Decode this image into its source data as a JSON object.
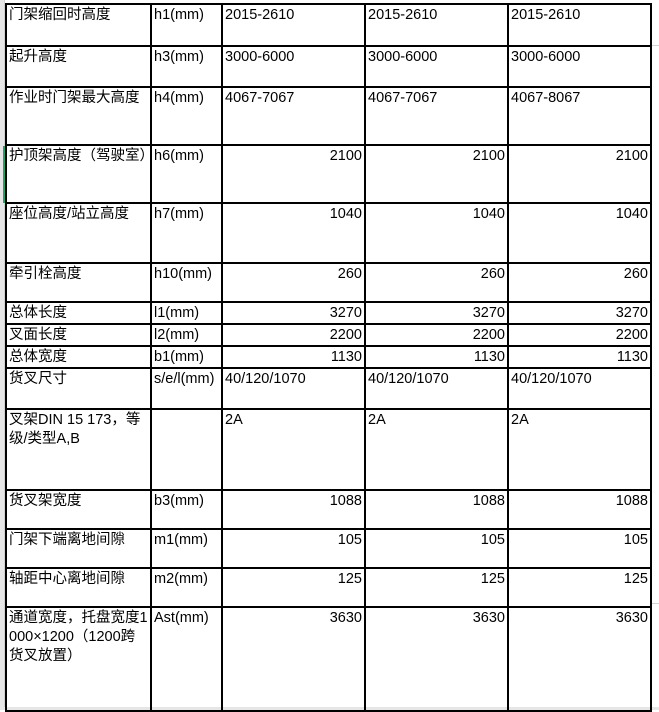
{
  "sheet": {
    "rows": [
      {
        "label": "门架缩回时高度",
        "unit": "h1(mm)",
        "values": [
          "2015-2610",
          "2015-2610",
          "2015-2610"
        ]
      },
      {
        "label": "起升高度",
        "unit": "h3(mm)",
        "values": [
          "3000-6000",
          "3000-6000",
          "3000-6000"
        ]
      },
      {
        "label": "作业时门架最大高度",
        "unit": "h4(mm)",
        "values": [
          "4067-7067",
          "4067-7067",
          "4067-8067"
        ]
      },
      {
        "label": "护顶架高度（驾驶室）",
        "unit": "h6(mm)",
        "values": [
          "2100",
          "2100",
          "2100"
        ]
      },
      {
        "label": "座位高度/站立高度",
        "unit": "h7(mm)",
        "values": [
          "1040",
          "1040",
          "1040"
        ]
      },
      {
        "label": "牵引栓高度",
        "unit": "h10(mm)",
        "values": [
          "260",
          "260",
          "260"
        ]
      },
      {
        "label": "总体长度",
        "unit": "l1(mm)",
        "values": [
          "3270",
          "3270",
          "3270"
        ]
      },
      {
        "label": "叉面长度",
        "unit": "l2(mm)",
        "values": [
          "2200",
          "2200",
          "2200"
        ]
      },
      {
        "label": "总体宽度",
        "unit": "b1(mm)",
        "values": [
          "1130",
          "1130",
          "1130"
        ]
      },
      {
        "label": "货叉尺寸",
        "unit": "s/e/l(mm)",
        "values": [
          "40/120/1070",
          "40/120/1070",
          "40/120/1070"
        ]
      },
      {
        "label": "叉架DIN 15 173，等级/类型A,B",
        "unit": "",
        "values": [
          "2A",
          "2A",
          "2A"
        ]
      },
      {
        "label": "货叉架宽度",
        "unit": "b3(mm)",
        "values": [
          "1088",
          "1088",
          "1088"
        ]
      },
      {
        "label": "门架下端离地间隙",
        "unit": "m1(mm)",
        "values": [
          "105",
          "105",
          "105"
        ]
      },
      {
        "label": "轴距中心离地间隙",
        "unit": "m2(mm)",
        "values": [
          "125",
          "125",
          "125"
        ]
      },
      {
        "label": "通道宽度，托盘宽度1000×1200（1200跨货叉放置）",
        "unit": "Ast(mm)",
        "values": [
          "3630",
          "3630",
          "3630"
        ]
      }
    ]
  }
}
